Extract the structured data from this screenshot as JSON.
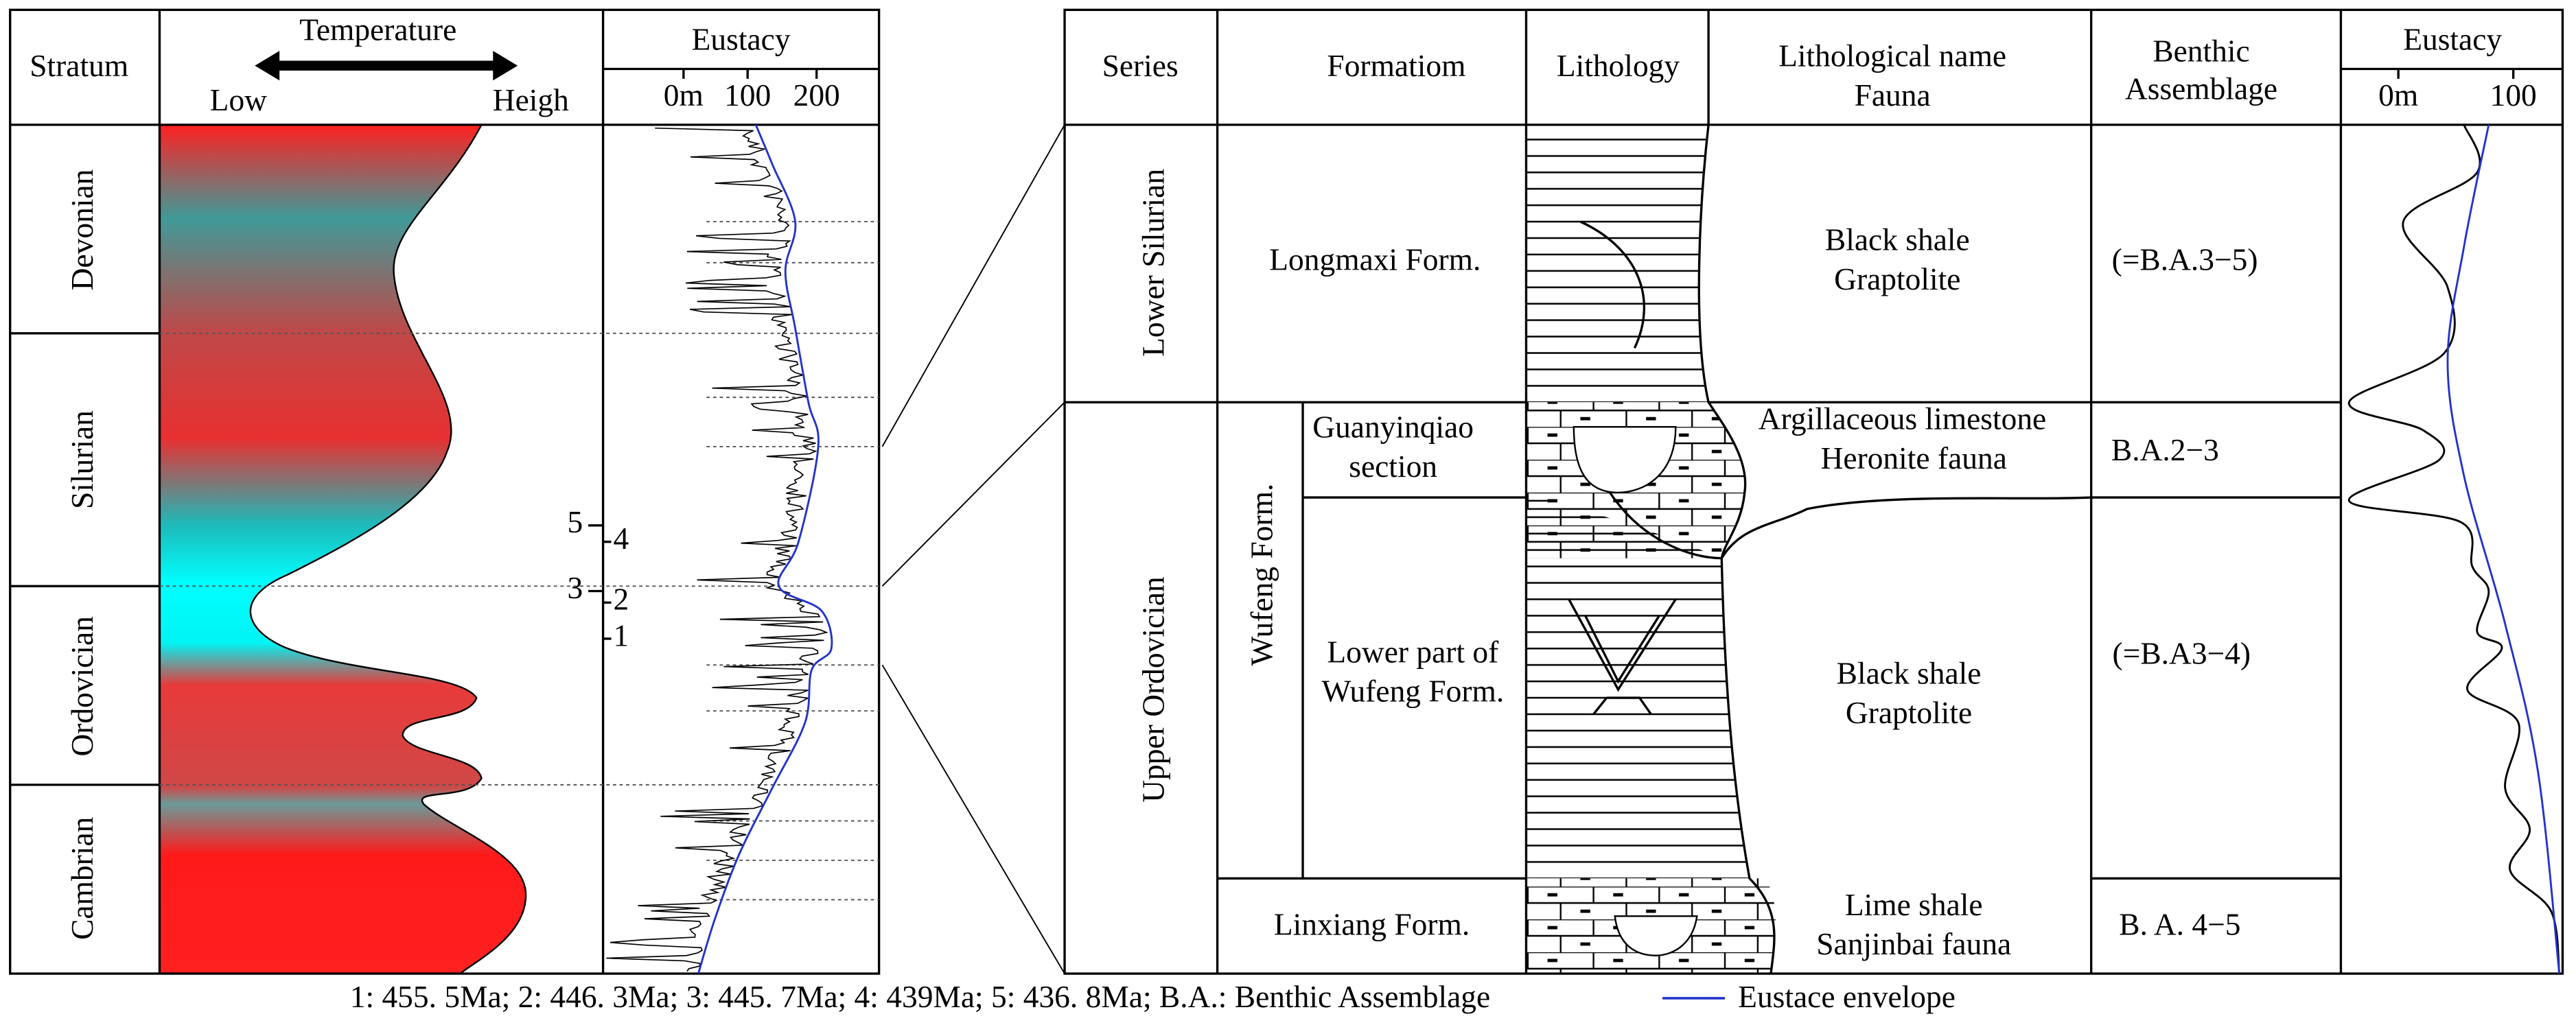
{
  "left": {
    "stratum_header": "Stratum",
    "temperature_header": "Temperature",
    "low": "Low",
    "high": "Heigh",
    "eustacy_header": "Eustacy",
    "eustacy_axis": [
      "0m",
      "100",
      "200"
    ],
    "strata": [
      "Devonian",
      "Silurian",
      "Ordovician",
      "Cambrian"
    ],
    "markers": [
      "1",
      "2",
      "3",
      "4",
      "5"
    ]
  },
  "right": {
    "headers": {
      "series": "Series",
      "formation": "Formatiom",
      "lithology": "Lithology",
      "lith_name": [
        "Lithological name",
        "Fauna"
      ],
      "benthic": [
        "Benthic",
        "Assemblage"
      ],
      "eustacy": "Eustacy",
      "eustacy_axis": [
        "0m",
        "100"
      ]
    },
    "series": [
      "Lower Silurian",
      "Upper Ordovician"
    ],
    "group": "Wufeng Form.",
    "rows": [
      {
        "formation": [
          "Longmaxi  Form."
        ],
        "lith_name": [
          "Black shale",
          "Graptolite"
        ],
        "benthic": "(=B.A.3−5)"
      },
      {
        "formation": [
          "Guanyinqiao",
          "section"
        ],
        "lith_name": [
          "Argillaceous limestone",
          "Heronite fauna"
        ],
        "benthic": "B.A.2−3"
      },
      {
        "formation": [
          "Lower part of",
          "Wufeng Form."
        ],
        "lith_name": [
          "Black shale",
          "Graptolite"
        ],
        "benthic": "(=B.A3−4)"
      },
      {
        "formation": [
          "Linxiang Form."
        ],
        "lith_name": [
          "Lime shale",
          "Sanjinbai fauna"
        ],
        "benthic": "B. A. 4−5"
      }
    ]
  },
  "footer": {
    "note": "1: 455. 5Ma; 2: 446. 3Ma; 3: 445. 7Ma; 4: 439Ma; 5: 436. 8Ma; B.A.: Benthic Assemblage",
    "legend": "Eustace envelope"
  }
}
